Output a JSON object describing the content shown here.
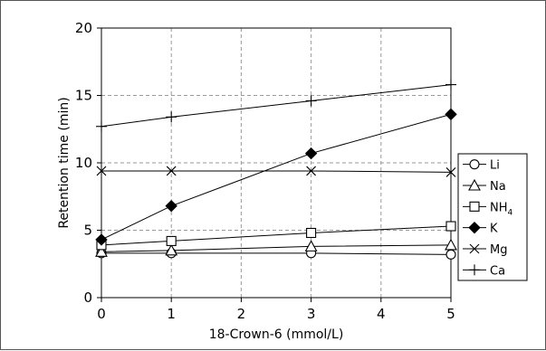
{
  "chart_data": {
    "type": "line",
    "title": "",
    "xlabel": "18-Crown-6 (mmol/L)",
    "ylabel": "Retention time (min)",
    "xlim": [
      0,
      5
    ],
    "ylim": [
      0,
      20
    ],
    "xticks": [
      0,
      1,
      2,
      3,
      4,
      5
    ],
    "yticks": [
      0,
      5,
      10,
      15,
      20
    ],
    "grid": true,
    "legend_position": "right",
    "x": [
      0,
      1,
      3,
      5
    ],
    "series": [
      {
        "name": "Li",
        "sub": "",
        "marker": "circle-open",
        "values": [
          3.3,
          3.3,
          3.3,
          3.2
        ]
      },
      {
        "name": "Na",
        "sub": "",
        "marker": "triangle-open",
        "values": [
          3.4,
          3.5,
          3.8,
          3.9
        ]
      },
      {
        "name": "NH",
        "sub": "4",
        "marker": "square-open",
        "values": [
          3.9,
          4.2,
          4.8,
          5.3
        ]
      },
      {
        "name": "K",
        "sub": "",
        "marker": "diamond-filled",
        "values": [
          4.3,
          6.8,
          10.7,
          13.6
        ]
      },
      {
        "name": "Mg",
        "sub": "",
        "marker": "x",
        "values": [
          9.4,
          9.4,
          9.4,
          9.3
        ]
      },
      {
        "name": "Ca",
        "sub": "",
        "marker": "plus",
        "values": [
          12.7,
          13.4,
          14.6,
          15.8
        ]
      }
    ]
  }
}
